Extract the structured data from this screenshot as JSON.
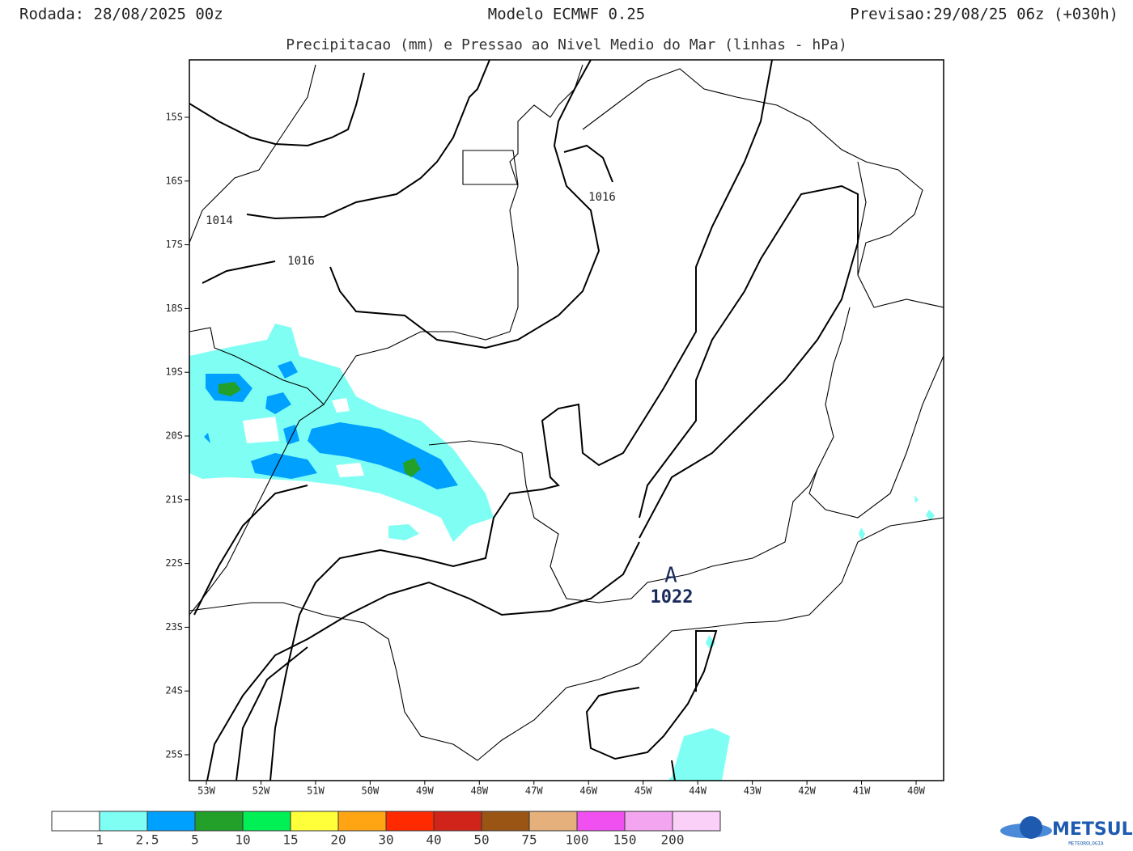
{
  "header": {
    "left": "Rodada: 28/08/2025 00z",
    "center": "Modelo ECMWF 0.25",
    "right": "Previsao:29/08/25 06z (+030h)",
    "title": "Precipitacao (mm) e Pressao ao Nivel Medio do Mar (linhas - hPa)"
  },
  "map": {
    "lat_labels": [
      "15S",
      "16S",
      "17S",
      "18S",
      "19S",
      "20S",
      "21S",
      "22S",
      "23S",
      "24S",
      "25S"
    ],
    "lon_labels": [
      "53W",
      "52W",
      "51W",
      "50W",
      "49W",
      "48W",
      "47W",
      "46W",
      "45W",
      "44W",
      "43W",
      "42W",
      "41W",
      "40W"
    ],
    "isobar_labels": [
      "1014",
      "1016",
      "1016"
    ],
    "high_symbol": "A",
    "high_value": "1022"
  },
  "colorbar": {
    "colors": [
      "#ffffff",
      "#7ffff4",
      "#00a0ff",
      "#22a02a",
      "#00f056",
      "#ffff3a",
      "#ffa514",
      "#ff2a00",
      "#d0231a",
      "#9a5514",
      "#e5b07c",
      "#f050ef",
      "#f4a5f0",
      "#fbd0f8"
    ],
    "levels": [
      1,
      2.5,
      5,
      10,
      15,
      20,
      30,
      40,
      50,
      75,
      100,
      150,
      200
    ]
  },
  "logo": {
    "name": "METSUL",
    "tagline": "METEOROLOGIA"
  }
}
